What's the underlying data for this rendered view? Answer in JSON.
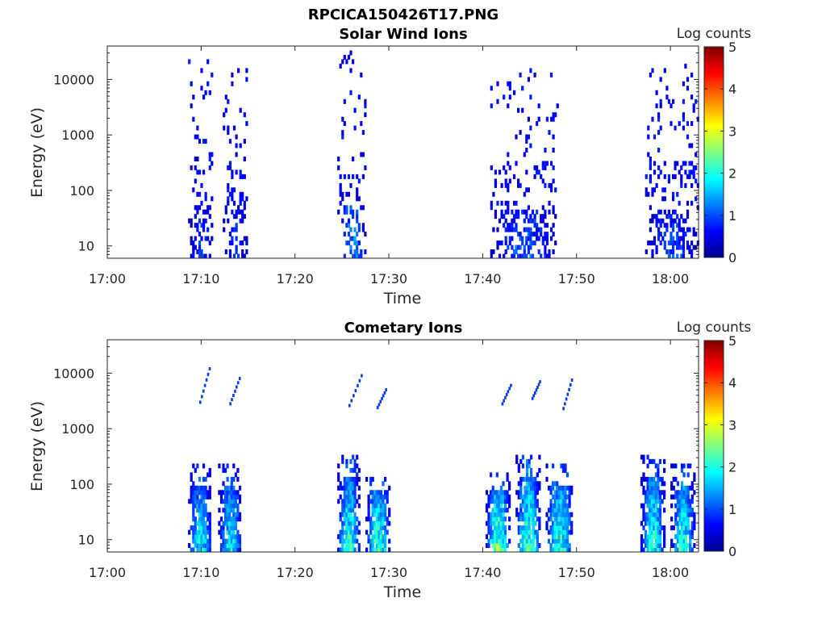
{
  "page": {
    "title": "RPCICA150426T17.PNG"
  },
  "colorbar": {
    "label": "Log counts",
    "min": 0,
    "max": 5,
    "ticks": [
      "0",
      "1",
      "2",
      "3",
      "4",
      "5"
    ],
    "colormap": "jet"
  },
  "chart_data": [
    {
      "type": "heatmap",
      "title": "Solar Wind Ions",
      "xlabel": "Time",
      "ylabel": "Energy (eV)",
      "x_tick_labels": [
        "17:00",
        "17:10",
        "17:20",
        "17:30",
        "17:40",
        "17:50",
        "18:00"
      ],
      "x_ticks_minutes": [
        0,
        10,
        20,
        30,
        40,
        50,
        60
      ],
      "xlim_minutes": [
        0,
        63
      ],
      "y_scale": "log",
      "y_tick_labels": [
        "10",
        "100",
        "1000",
        "10000"
      ],
      "y_ticks": [
        10,
        100,
        1000,
        10000
      ],
      "ylim": [
        6,
        40000
      ],
      "color_scale": "Log counts",
      "bursts": [
        {
          "t_start_minutes": 8.6,
          "t_end_minutes": 11.2,
          "peak_log_counts": 1.2,
          "e_max": 20000
        },
        {
          "t_start_minutes": 12.3,
          "t_end_minutes": 14.8,
          "peak_log_counts": 1.1,
          "e_max": 14000
        },
        {
          "t_start_minutes": 24.5,
          "t_end_minutes": 27.5,
          "peak_log_counts": 1.7,
          "e_max": 30000
        },
        {
          "t_start_minutes": 40.8,
          "t_end_minutes": 48.0,
          "peak_log_counts": 1.4,
          "e_max": 14000
        },
        {
          "t_start_minutes": 57.3,
          "t_end_minutes": 62.8,
          "peak_log_counts": 1.3,
          "e_max": 18000
        }
      ]
    },
    {
      "type": "heatmap",
      "title": "Cometary Ions",
      "xlabel": "Time",
      "ylabel": "Energy (eV)",
      "x_tick_labels": [
        "17:00",
        "17:10",
        "17:20",
        "17:30",
        "17:40",
        "17:50",
        "18:00"
      ],
      "x_ticks_minutes": [
        0,
        10,
        20,
        30,
        40,
        50,
        60
      ],
      "xlim_minutes": [
        0,
        63
      ],
      "y_scale": "log",
      "y_tick_labels": [
        "10",
        "100",
        "1000",
        "10000"
      ],
      "y_ticks": [
        10,
        100,
        1000,
        10000
      ],
      "ylim": [
        6,
        40000
      ],
      "color_scale": "Log counts",
      "bursts": [
        {
          "t_start_minutes": 8.6,
          "t_end_minutes": 11.0,
          "peak_log_counts": 2.4,
          "e_max": 200
        },
        {
          "t_start_minutes": 11.8,
          "t_end_minutes": 14.2,
          "peak_log_counts": 2.4,
          "e_max": 200
        },
        {
          "t_start_minutes": 24.5,
          "t_end_minutes": 26.8,
          "peak_log_counts": 2.6,
          "e_max": 300
        },
        {
          "t_start_minutes": 27.5,
          "t_end_minutes": 30.0,
          "peak_log_counts": 2.8,
          "e_max": 150
        },
        {
          "t_start_minutes": 40.3,
          "t_end_minutes": 42.8,
          "peak_log_counts": 3.1,
          "e_max": 150
        },
        {
          "t_start_minutes": 43.5,
          "t_end_minutes": 46.0,
          "peak_log_counts": 2.9,
          "e_max": 300
        },
        {
          "t_start_minutes": 46.7,
          "t_end_minutes": 49.5,
          "peak_log_counts": 2.8,
          "e_max": 200
        },
        {
          "t_start_minutes": 56.8,
          "t_end_minutes": 59.3,
          "peak_log_counts": 2.6,
          "e_max": 300
        },
        {
          "t_start_minutes": 60.0,
          "t_end_minutes": 62.5,
          "peak_log_counts": 2.7,
          "e_max": 200
        }
      ],
      "high_energy_streaks": [
        {
          "t_start_minutes": 9.8,
          "t_end_minutes": 10.8,
          "e_start": 3000,
          "e_end": 12000
        },
        {
          "t_start_minutes": 13.0,
          "t_end_minutes": 14.0,
          "e_start": 2800,
          "e_end": 8000
        },
        {
          "t_start_minutes": 25.7,
          "t_end_minutes": 27.0,
          "e_start": 2600,
          "e_end": 9000
        },
        {
          "t_start_minutes": 28.7,
          "t_end_minutes": 29.6,
          "e_start": 2400,
          "e_end": 5000
        },
        {
          "t_start_minutes": 42.0,
          "t_end_minutes": 42.9,
          "e_start": 2800,
          "e_end": 6000
        },
        {
          "t_start_minutes": 45.2,
          "t_end_minutes": 46.0,
          "e_start": 3500,
          "e_end": 7000
        },
        {
          "t_start_minutes": 48.5,
          "t_end_minutes": 49.4,
          "e_start": 2300,
          "e_end": 7500
        }
      ]
    }
  ]
}
